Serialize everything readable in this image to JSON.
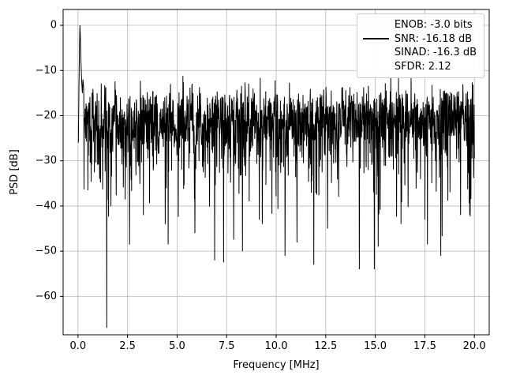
{
  "figure": {
    "background": "#ffffff"
  },
  "chart_data": {
    "type": "line",
    "title": "",
    "xlabel": "Frequency [MHz]",
    "ylabel": "PSD [dB]",
    "xlim": [
      -0.75,
      20.75
    ],
    "ylim": [
      -68.5,
      3.5
    ],
    "grid": true,
    "grid_color": "#b8b8b8",
    "line_color": "#000000",
    "spine_color": "#000000",
    "xticks": {
      "values": [
        0,
        2.5,
        5,
        7.5,
        10,
        12.5,
        15,
        17.5,
        20
      ],
      "labels": [
        "0.0",
        "2.5",
        "5.0",
        "7.5",
        "10.0",
        "12.5",
        "15.0",
        "17.5",
        "20.0"
      ]
    },
    "yticks": {
      "values": [
        0,
        -10,
        -20,
        -30,
        -40,
        -50,
        -60
      ],
      "labels": [
        "0",
        "−10",
        "−20",
        "−30",
        "−40",
        "−50",
        "−60"
      ]
    },
    "legend": {
      "position": "upper right",
      "handle_color": "#000000",
      "entries": [
        "ENOB: -3.0 bits",
        "SNR: -16.18 dB",
        "SINAD: -16.3 dB",
        "SFDR: 2.12"
      ]
    },
    "stats": {
      "enob_bits": -3.0,
      "snr_db": -16.18,
      "sinad_db": -16.3,
      "sfdr": 2.12
    },
    "series": [
      {
        "name": "psd",
        "peak_points": [
          [
            0.02,
            -26
          ],
          [
            0.05,
            -13
          ],
          [
            0.08,
            -4
          ],
          [
            0.1,
            0
          ],
          [
            0.12,
            -3
          ],
          [
            0.15,
            -8
          ],
          [
            0.18,
            -12
          ],
          [
            0.22,
            -15
          ],
          [
            0.25,
            -12
          ]
        ],
        "noise": {
          "model": "base_db + 10*log10(Exp(1)) floor noise",
          "base_db": -20,
          "n_points": 1700,
          "x_start": 0.28,
          "x_end": 20.0,
          "seed": 7,
          "min_db": -48.5,
          "max_db": -11
        },
        "deep_nulls": [
          [
            1.45,
            -67
          ],
          [
            2.6,
            -48.5
          ],
          [
            3.3,
            -42
          ],
          [
            4.4,
            -44
          ],
          [
            5.9,
            -46
          ],
          [
            6.9,
            -52
          ],
          [
            7.35,
            -52.5
          ],
          [
            8.3,
            -50
          ],
          [
            9.3,
            -44
          ],
          [
            10.45,
            -51
          ],
          [
            11.9,
            -53
          ],
          [
            12.6,
            -45
          ],
          [
            14.2,
            -54
          ],
          [
            14.95,
            -54
          ],
          [
            15.15,
            -49
          ],
          [
            16.3,
            -44
          ],
          [
            17.5,
            -43
          ],
          [
            18.3,
            -51
          ],
          [
            19.3,
            -42
          ]
        ]
      }
    ]
  }
}
